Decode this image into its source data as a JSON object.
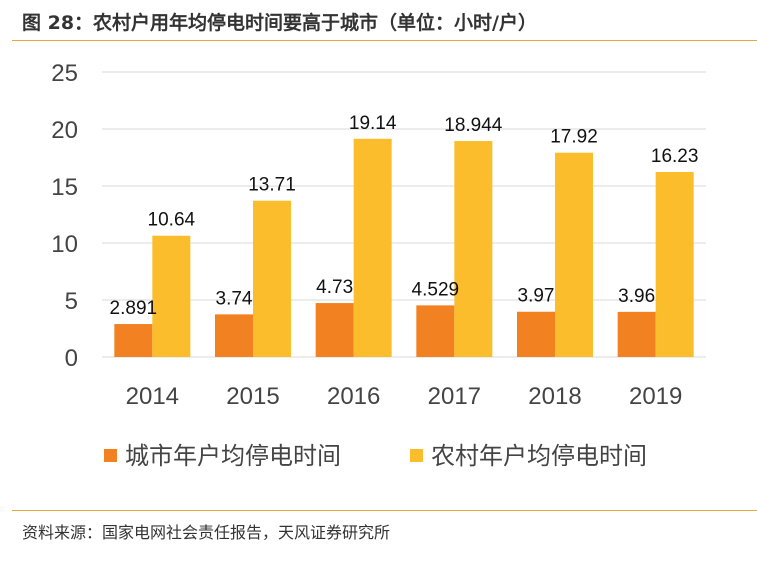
{
  "title": "图 28：农村户用年均停电时间要高于城市（单位：小时/户）",
  "source": "资料来源：国家电网社会责任报告，天风证券研究所",
  "colors": {
    "city": "#f28121",
    "rural": "#fbbd2b",
    "grid": "#d9d9d9",
    "rule": "#e2a93a"
  },
  "chart_data": {
    "type": "bar",
    "categories": [
      "2014",
      "2015",
      "2016",
      "2017",
      "2018",
      "2019"
    ],
    "series": [
      {
        "name": "城市年户均停电时间",
        "values": [
          2.891,
          3.74,
          4.73,
          4.529,
          3.97,
          3.96
        ],
        "labels": [
          "2.891",
          "3.74",
          "4.73",
          "4.529",
          "3.97",
          "3.96"
        ]
      },
      {
        "name": "农村年户均停电时间",
        "values": [
          10.64,
          13.71,
          19.14,
          18.944,
          17.92,
          16.23
        ],
        "labels": [
          "10.64",
          "13.71",
          "19.14",
          "18.944",
          "17.92",
          "16.23"
        ]
      }
    ],
    "yticks": [
      "0",
      "5",
      "10",
      "15",
      "20",
      "25"
    ],
    "ylim": [
      0,
      25
    ],
    "grid": true,
    "legend": "bottom"
  }
}
